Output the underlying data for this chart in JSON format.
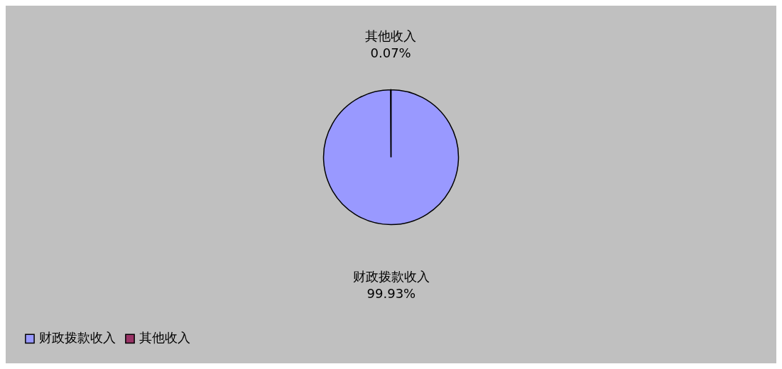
{
  "chart_data": {
    "type": "pie",
    "categories": [
      "财政拨款收入",
      "其他收入"
    ],
    "values": [
      99.93,
      0.07
    ],
    "colors": [
      "#9999ff",
      "#993366"
    ],
    "value_labels": [
      "99.93%",
      "0.07%"
    ],
    "legend": "bottom"
  }
}
